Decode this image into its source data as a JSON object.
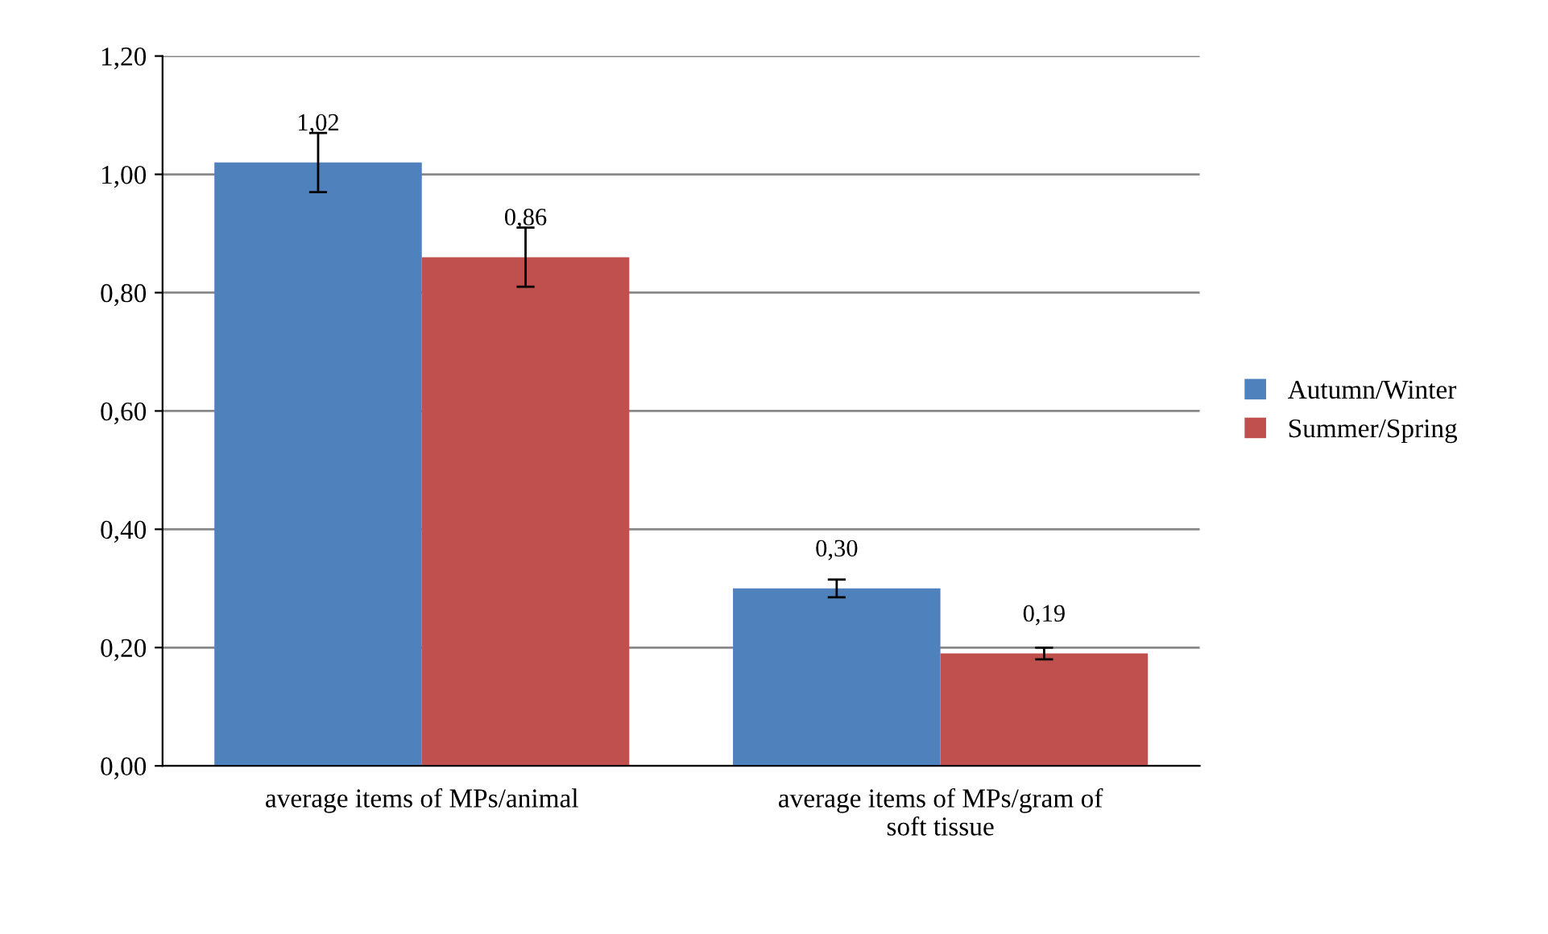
{
  "chart_data": {
    "type": "bar",
    "categories": [
      "average items of MPs/animal",
      "average items of MPs/gram of\nsoft tissue"
    ],
    "series": [
      {
        "name": "Autumn/Winter",
        "color": "#4f81bd",
        "values": [
          1.02,
          0.3
        ],
        "errors": [
          0.05,
          0.015
        ],
        "value_labels": [
          "1,02",
          "0,30"
        ]
      },
      {
        "name": "Summer/Spring",
        "color": "#c0504d",
        "values": [
          0.86,
          0.19
        ],
        "errors": [
          0.05,
          0.01
        ],
        "value_labels": [
          "0,86",
          "0,19"
        ]
      }
    ],
    "ylim": [
      0,
      1.2
    ],
    "yticks": [
      {
        "value": 0,
        "label": "0,00"
      },
      {
        "value": 0.2,
        "label": "0,20"
      },
      {
        "value": 0.4,
        "label": "0,40"
      },
      {
        "value": 0.6,
        "label": "0,60"
      },
      {
        "value": 0.8,
        "label": "0,80"
      },
      {
        "value": 1.0,
        "label": "1,00"
      },
      {
        "value": 1.2,
        "label": "1,20"
      }
    ],
    "grid": "y",
    "legend": "right"
  }
}
